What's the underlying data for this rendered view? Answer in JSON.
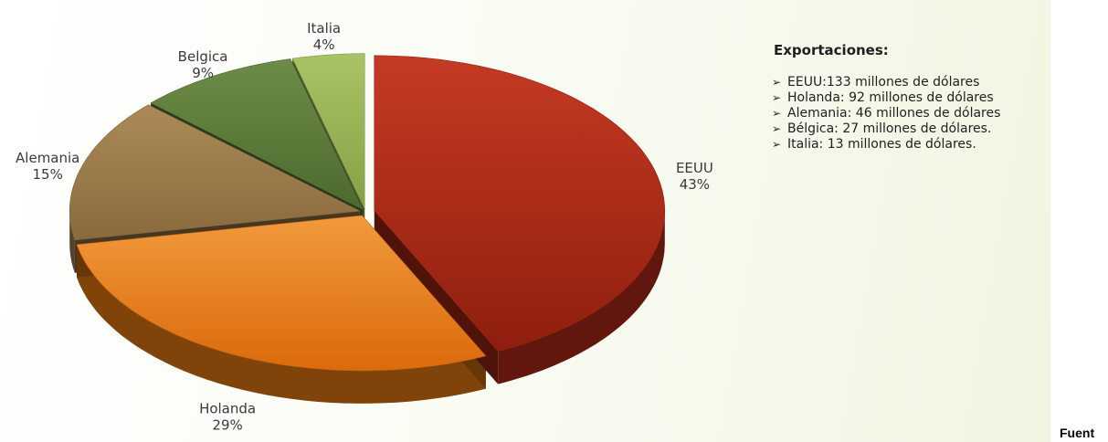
{
  "chart_data": {
    "type": "pie",
    "title": "",
    "slices": [
      {
        "label": "EEUU",
        "pct_label": "43%",
        "value": 43,
        "color": "#b02a17"
      },
      {
        "label": "Holanda",
        "pct_label": "29%",
        "value": 29,
        "color": "#e87b12"
      },
      {
        "label": "Alemania",
        "pct_label": "15%",
        "value": 15,
        "color": "#9b7a4b"
      },
      {
        "label": "Belgica",
        "pct_label": "9%",
        "value": 9,
        "color": "#5f7d3c"
      },
      {
        "label": "Italia",
        "pct_label": "4%",
        "value": 4,
        "color": "#9bb55a"
      }
    ]
  },
  "notes": {
    "title": "Exportaciones:",
    "bullet": "➢",
    "items": [
      "EEUU:133 millones de dólares",
      "Holanda: 92 millones de dólares",
      "Alemania: 46 millones de dólares",
      "Bélgica: 27 millones de dólares.",
      "Italia: 13 millones de dólares."
    ]
  },
  "source_label": "Fuent"
}
